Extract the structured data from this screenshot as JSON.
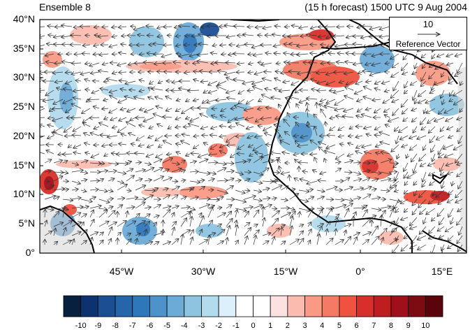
{
  "title_left": "Ensemble 8",
  "title_right": "(15 h forecast) 1500 UTC 9 Aug 2004",
  "lat_labels": [
    "40°N",
    "35°N",
    "30°N",
    "25°N",
    "20°N",
    "15°N",
    "10°N",
    "5°N",
    "0°"
  ],
  "lon_labels": [
    "45°W",
    "30°W",
    "15°W",
    "0°",
    "15°E"
  ],
  "reference_vector": {
    "value": "10",
    "label": "Reference Vector"
  },
  "colorbar": {
    "labels": [
      "-10",
      "-9",
      "-8",
      "-7",
      "-6",
      "-5",
      "-4",
      "-3",
      "-2",
      "-1",
      "0",
      "1",
      "2",
      "3",
      "4",
      "5",
      "6",
      "7",
      "8",
      "9",
      "10"
    ],
    "colors": [
      "#08203f",
      "#0c3370",
      "#1a4f94",
      "#2566aa",
      "#2f77bb",
      "#4d92c9",
      "#6cabd6",
      "#8ec4e0",
      "#b3dbee",
      "#dcf0fb",
      "#ffffff",
      "#ffffff",
      "#fde0e0",
      "#fbbcb0",
      "#fa9a85",
      "#f57a64",
      "#ef5340",
      "#d92f2a",
      "#c01d21",
      "#a10f1a",
      "#7d0b12",
      "#5a050c"
    ]
  },
  "map_extent": {
    "lon": [
      -58,
      20
    ],
    "lat": [
      0,
      40
    ]
  }
}
